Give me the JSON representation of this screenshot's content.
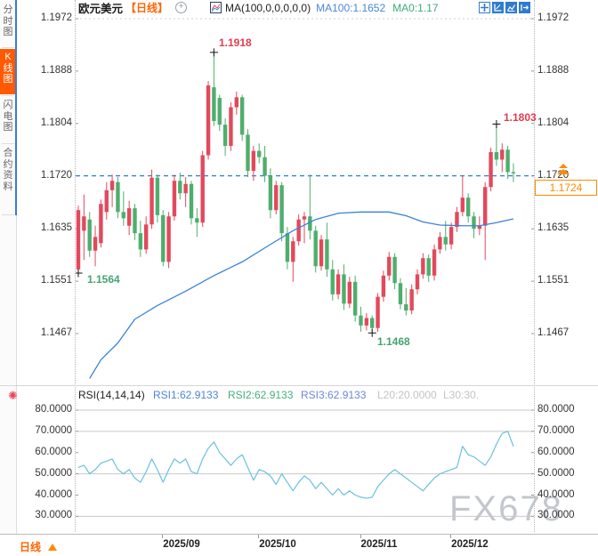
{
  "topbar": {
    "symbol": "欧元美元",
    "period": "【日线】",
    "ma_formula": "MA(100,0,0,0,0,0)",
    "ma100": "MA100:1.1652",
    "ma0": "MA0:1.17",
    "plus_icon": "+",
    "icons": [
      "pan-crosshair",
      "axis-scale",
      "indicator-chart",
      "collapse-panel"
    ]
  },
  "sidebar": {
    "tabs": [
      {
        "label": "分时图",
        "active": false
      },
      {
        "label": "K线图",
        "active": true
      },
      {
        "label": "闪电图",
        "active": false
      },
      {
        "label": "合约资料",
        "active": false
      }
    ]
  },
  "main_chart": {
    "y_axis_labels": [
      "1.1972",
      "1.1888",
      "1.1804",
      "1.1720",
      "1.1635",
      "1.1551",
      "1.1467"
    ],
    "current_price": "1.1724",
    "annotations": {
      "high": "1.1918",
      "start_low": "1.1564",
      "low": "1.1468",
      "recent_high": "1.1803"
    }
  },
  "rsi_panel": {
    "title": "RSI(14,14,14)",
    "rsi1": "RSI1:62.9133",
    "rsi2": "RSI2:62.9133",
    "rsi3": "RSI3:62.9133",
    "l20": "L20:20.0000",
    "l30": "L30:30.",
    "y_axis_labels": [
      "80.0000",
      "70.0000",
      "60.0000",
      "50.0000",
      "40.0000",
      "30.0000"
    ]
  },
  "x_axis": {
    "labels": [
      "2025/09",
      "2025/10",
      "2025/11",
      "2025/12"
    ]
  },
  "bottom_bar": {
    "period_tab": "日线"
  },
  "watermark": "FX678",
  "colors": {
    "up_candle": "#e2495c",
    "down_candle": "#4fae6d",
    "ma_line": "#3b82d9",
    "rsi_line": "#6bc0de",
    "dashed_level_line": "#2e7fd8",
    "accent_orange": "#ff6400",
    "price_marker_orange": "#ff8a00",
    "annotation_red": "#e23b50",
    "annotation_green": "#43a472"
  },
  "chart_data": {
    "type": "candlestick",
    "title": "EUR/USD (欧元美元) daily candlesticks with MA100 and RSI(14,14,14)",
    "price_axis_ticks": [
      1.1972,
      1.1888,
      1.1804,
      1.172,
      1.1635,
      1.1551,
      1.1467
    ],
    "rsi_axis_ticks": [
      80,
      70,
      60,
      50,
      40,
      30
    ],
    "rsi_guide_levels": [
      80,
      70,
      50,
      30
    ],
    "x_tick_labels": [
      "2025/09",
      "2025/10",
      "2025/11",
      "2025/12"
    ],
    "x_tick_candle_index": [
      15,
      32,
      50,
      66
    ],
    "dashed_level": 1.172,
    "current_price": 1.1724,
    "ma100_last": 1.1652,
    "ma0_last": 1.17,
    "rsi_last": 62.9133,
    "marked_points": [
      {
        "name": "high",
        "index": 24,
        "price": 1.1918
      },
      {
        "name": "start_low",
        "index": 0,
        "price": 1.1564
      },
      {
        "name": "low",
        "index": 52,
        "price": 1.1468
      },
      {
        "name": "recent_high",
        "index": 74,
        "price": 1.1803
      }
    ],
    "candles_ohlc": [
      [
        1.157,
        1.1672,
        1.1564,
        1.1665
      ],
      [
        1.1632,
        1.169,
        1.1585,
        1.1655
      ],
      [
        1.165,
        1.1662,
        1.159,
        1.16
      ],
      [
        1.16,
        1.164,
        1.1575,
        1.1622
      ],
      [
        1.1612,
        1.1682,
        1.1605,
        1.1675
      ],
      [
        1.1662,
        1.171,
        1.165,
        1.1697
      ],
      [
        1.1697,
        1.1722,
        1.167,
        1.1712
      ],
      [
        1.171,
        1.1718,
        1.1652,
        1.1662
      ],
      [
        1.1662,
        1.1695,
        1.164,
        1.1652
      ],
      [
        1.164,
        1.168,
        1.1625,
        1.1668
      ],
      [
        1.1668,
        1.1675,
        1.1617,
        1.1628
      ],
      [
        1.1628,
        1.1648,
        1.159,
        1.1602
      ],
      [
        1.1602,
        1.1655,
        1.1595,
        1.1642
      ],
      [
        1.1642,
        1.173,
        1.1635,
        1.1717
      ],
      [
        1.1717,
        1.1722,
        1.1645,
        1.1657
      ],
      [
        1.1657,
        1.1665,
        1.1575,
        1.1582
      ],
      [
        1.1582,
        1.1662,
        1.1572,
        1.1655
      ],
      [
        1.1655,
        1.1722,
        1.1648,
        1.1712
      ],
      [
        1.1712,
        1.1725,
        1.1682,
        1.1692
      ],
      [
        1.1692,
        1.1718,
        1.167,
        1.1707
      ],
      [
        1.1707,
        1.1712,
        1.1642,
        1.1652
      ],
      [
        1.1652,
        1.1668,
        1.1622,
        1.1645
      ],
      [
        1.1645,
        1.176,
        1.1638,
        1.1753
      ],
      [
        1.1753,
        1.1872,
        1.1746,
        1.1865
      ],
      [
        1.1862,
        1.1918,
        1.18,
        1.1808
      ],
      [
        1.1845,
        1.185,
        1.1792,
        1.1802
      ],
      [
        1.1802,
        1.1812,
        1.1752,
        1.1768
      ],
      [
        1.1768,
        1.1838,
        1.176,
        1.183
      ],
      [
        1.183,
        1.1855,
        1.1818,
        1.1846
      ],
      [
        1.1846,
        1.185,
        1.1776,
        1.1786
      ],
      [
        1.1786,
        1.1795,
        1.1718,
        1.1728
      ],
      [
        1.1728,
        1.1768,
        1.1712,
        1.176
      ],
      [
        1.176,
        1.1772,
        1.174,
        1.175
      ],
      [
        1.175,
        1.1768,
        1.171,
        1.172
      ],
      [
        1.172,
        1.1732,
        1.1652,
        1.1665
      ],
      [
        1.1665,
        1.1712,
        1.1658,
        1.1705
      ],
      [
        1.1705,
        1.171,
        1.1615,
        1.1628
      ],
      [
        1.1628,
        1.1638,
        1.157,
        1.1582
      ],
      [
        1.1582,
        1.1622,
        1.155,
        1.1615
      ],
      [
        1.1615,
        1.1658,
        1.1608,
        1.165
      ],
      [
        1.165,
        1.1662,
        1.1612,
        1.1655
      ],
      [
        1.1655,
        1.1722,
        1.1618,
        1.1632
      ],
      [
        1.1632,
        1.164,
        1.1565,
        1.1575
      ],
      [
        1.1575,
        1.1625,
        1.1568,
        1.1618
      ],
      [
        1.1618,
        1.1645,
        1.1558,
        1.157
      ],
      [
        1.157,
        1.1585,
        1.152,
        1.153
      ],
      [
        1.153,
        1.157,
        1.1522,
        1.1562
      ],
      [
        1.1562,
        1.1578,
        1.1505,
        1.1515
      ],
      [
        1.1515,
        1.1558,
        1.1508,
        1.155
      ],
      [
        1.155,
        1.156,
        1.1486,
        1.1496
      ],
      [
        1.1496,
        1.151,
        1.147,
        1.148
      ],
      [
        1.148,
        1.15,
        1.1472,
        1.1492
      ],
      [
        1.1492,
        1.1496,
        1.1468,
        1.1476
      ],
      [
        1.1476,
        1.1532,
        1.147,
        1.1526
      ],
      [
        1.1526,
        1.1568,
        1.1518,
        1.156
      ],
      [
        1.156,
        1.1598,
        1.1552,
        1.159
      ],
      [
        1.159,
        1.1596,
        1.1538,
        1.1548
      ],
      [
        1.1548,
        1.1556,
        1.1506,
        1.1514
      ],
      [
        1.1514,
        1.154,
        1.1496,
        1.1504
      ],
      [
        1.1504,
        1.1546,
        1.1498,
        1.1538
      ],
      [
        1.1538,
        1.157,
        1.153,
        1.1562
      ],
      [
        1.1562,
        1.1596,
        1.1555,
        1.1588
      ],
      [
        1.1588,
        1.1594,
        1.155,
        1.156
      ],
      [
        1.156,
        1.161,
        1.1552,
        1.1602
      ],
      [
        1.1602,
        1.163,
        1.1595,
        1.1622
      ],
      [
        1.1622,
        1.1648,
        1.16,
        1.161
      ],
      [
        1.161,
        1.1645,
        1.1602,
        1.1638
      ],
      [
        1.1638,
        1.167,
        1.163,
        1.1662
      ],
      [
        1.1662,
        1.172,
        1.1655,
        1.1685
      ],
      [
        1.1685,
        1.1692,
        1.1645,
        1.1655
      ],
      [
        1.1655,
        1.1662,
        1.162,
        1.1635
      ],
      [
        1.1635,
        1.1655,
        1.1625,
        1.164
      ],
      [
        1.164,
        1.171,
        1.1585,
        1.1702
      ],
      [
        1.1702,
        1.1765,
        1.1695,
        1.1758
      ],
      [
        1.1758,
        1.1803,
        1.1736,
        1.1746
      ],
      [
        1.1746,
        1.1772,
        1.1726,
        1.1762
      ],
      [
        1.1762,
        1.1768,
        1.1715,
        1.1726
      ],
      [
        1.1726,
        1.174,
        1.171,
        1.1724
      ]
    ],
    "ma100_knots": [
      [
        2,
        1.1395
      ],
      [
        4,
        1.1425
      ],
      [
        7,
        1.1452
      ],
      [
        10,
        1.149
      ],
      [
        14,
        1.1512
      ],
      [
        19,
        1.1535
      ],
      [
        24,
        1.156
      ],
      [
        29,
        1.1582
      ],
      [
        34,
        1.161
      ],
      [
        38,
        1.1632
      ],
      [
        42,
        1.165
      ],
      [
        46,
        1.166
      ],
      [
        50,
        1.1662
      ],
      [
        55,
        1.1662
      ],
      [
        58,
        1.1656
      ],
      [
        61,
        1.1646
      ],
      [
        64,
        1.1641
      ],
      [
        68,
        1.164
      ],
      [
        71,
        1.164
      ],
      [
        74,
        1.1645
      ],
      [
        77,
        1.1651
      ]
    ],
    "rsi_values": [
      53,
      54,
      50,
      52,
      55,
      56,
      57,
      52,
      50,
      52,
      48,
      46,
      51,
      57,
      52,
      46,
      52,
      57,
      55,
      57,
      51,
      50,
      57,
      62,
      65,
      60,
      57,
      54,
      57,
      59,
      53,
      47,
      52,
      51,
      49,
      45,
      50,
      46,
      42,
      46,
      49,
      47,
      43,
      46,
      43,
      40,
      43,
      40,
      42,
      40,
      39,
      38.5,
      39,
      44,
      47,
      50,
      52,
      50,
      48,
      46,
      44,
      42,
      45,
      48,
      50,
      51,
      52,
      53,
      63,
      59,
      58,
      56,
      54,
      58,
      64,
      69,
      70,
      62.9
    ]
  }
}
